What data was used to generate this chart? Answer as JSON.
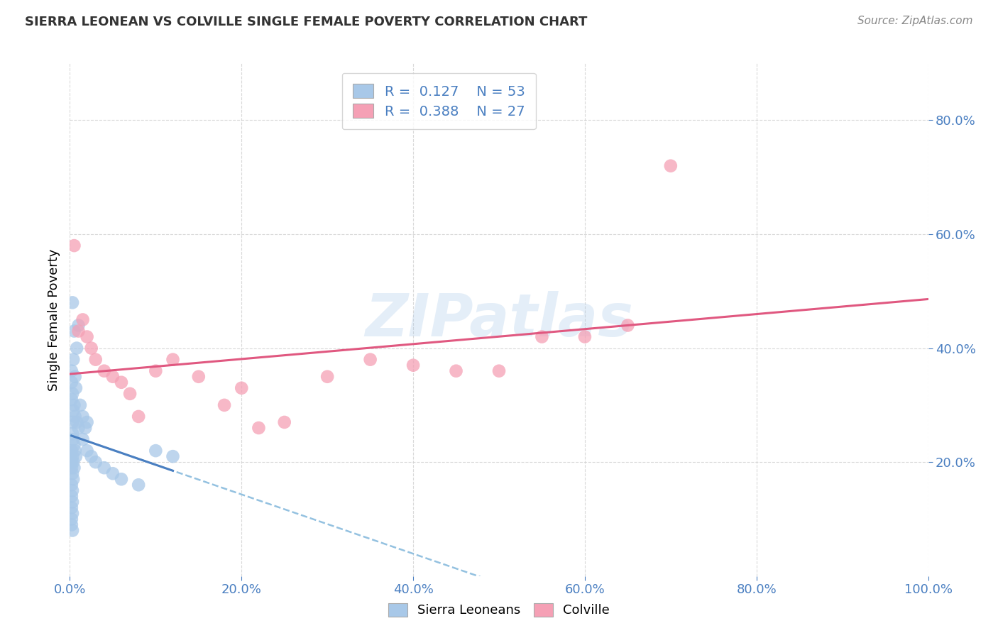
{
  "title": "SIERRA LEONEAN VS COLVILLE SINGLE FEMALE POVERTY CORRELATION CHART",
  "source": "Source: ZipAtlas.com",
  "ylabel": "Single Female Poverty",
  "legend_label1": "Sierra Leoneans",
  "legend_label2": "Colville",
  "r1": 0.127,
  "n1": 53,
  "r2": 0.388,
  "n2": 27,
  "watermark": "ZIPatlas",
  "blue_color": "#a8c8e8",
  "pink_color": "#f5a0b5",
  "line_blue_solid": "#4a7fc1",
  "line_blue_dashed": "#88bbdd",
  "line_pink": "#e05880",
  "blue_scatter": [
    [
      0.3,
      48.0
    ],
    [
      0.5,
      43.0
    ],
    [
      0.8,
      40.0
    ],
    [
      1.0,
      44.0
    ],
    [
      0.2,
      36.0
    ],
    [
      0.4,
      38.0
    ],
    [
      0.6,
      35.0
    ],
    [
      0.7,
      33.0
    ],
    [
      1.2,
      30.0
    ],
    [
      1.5,
      28.0
    ],
    [
      1.8,
      26.0
    ],
    [
      2.0,
      27.0
    ],
    [
      0.3,
      32.0
    ],
    [
      0.5,
      30.0
    ],
    [
      0.4,
      29.0
    ],
    [
      0.6,
      28.0
    ],
    [
      0.8,
      27.0
    ],
    [
      1.0,
      26.0
    ],
    [
      0.2,
      31.0
    ],
    [
      0.3,
      25.0
    ],
    [
      0.4,
      24.0
    ],
    [
      0.5,
      23.0
    ],
    [
      0.6,
      22.0
    ],
    [
      0.7,
      21.0
    ],
    [
      0.2,
      22.0
    ],
    [
      0.3,
      21.0
    ],
    [
      0.4,
      20.0
    ],
    [
      0.5,
      19.0
    ],
    [
      0.2,
      19.0
    ],
    [
      0.3,
      18.0
    ],
    [
      0.4,
      17.0
    ],
    [
      0.2,
      16.0
    ],
    [
      0.3,
      15.0
    ],
    [
      0.2,
      14.0
    ],
    [
      0.3,
      13.0
    ],
    [
      0.2,
      12.0
    ],
    [
      0.3,
      11.0
    ],
    [
      0.2,
      10.0
    ],
    [
      0.2,
      9.0
    ],
    [
      0.3,
      8.0
    ],
    [
      1.5,
      24.0
    ],
    [
      2.0,
      22.0
    ],
    [
      2.5,
      21.0
    ],
    [
      3.0,
      20.0
    ],
    [
      4.0,
      19.0
    ],
    [
      5.0,
      18.0
    ],
    [
      6.0,
      17.0
    ],
    [
      8.0,
      16.0
    ],
    [
      10.0,
      22.0
    ],
    [
      12.0,
      21.0
    ],
    [
      0.2,
      34.0
    ],
    [
      0.3,
      27.0
    ],
    [
      0.2,
      20.0
    ]
  ],
  "pink_scatter": [
    [
      0.5,
      58.0
    ],
    [
      1.5,
      45.0
    ],
    [
      2.0,
      42.0
    ],
    [
      3.0,
      38.0
    ],
    [
      1.0,
      43.0
    ],
    [
      2.5,
      40.0
    ],
    [
      4.0,
      36.0
    ],
    [
      6.0,
      34.0
    ],
    [
      8.0,
      28.0
    ],
    [
      5.0,
      35.0
    ],
    [
      7.0,
      32.0
    ],
    [
      10.0,
      36.0
    ],
    [
      12.0,
      38.0
    ],
    [
      15.0,
      35.0
    ],
    [
      20.0,
      33.0
    ],
    [
      18.0,
      30.0
    ],
    [
      25.0,
      27.0
    ],
    [
      22.0,
      26.0
    ],
    [
      30.0,
      35.0
    ],
    [
      35.0,
      38.0
    ],
    [
      40.0,
      37.0
    ],
    [
      45.0,
      36.0
    ],
    [
      50.0,
      36.0
    ],
    [
      55.0,
      42.0
    ],
    [
      60.0,
      42.0
    ],
    [
      65.0,
      44.0
    ],
    [
      70.0,
      72.0
    ]
  ],
  "xmin": 0.0,
  "xmax": 100.0,
  "ymin": 0.0,
  "ymax": 90.0,
  "yticks": [
    20.0,
    40.0,
    60.0,
    80.0
  ],
  "xticks": [
    0.0,
    20.0,
    40.0,
    60.0,
    80.0,
    100.0
  ],
  "background_color": "#ffffff",
  "grid_color": "#d0d0d0"
}
